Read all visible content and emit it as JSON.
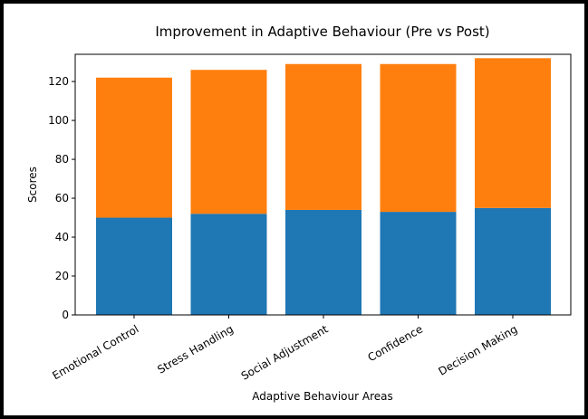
{
  "chart_data": {
    "type": "bar",
    "stacked": true,
    "title": "Improvement in Adaptive Behaviour (Pre vs Post)",
    "xlabel": "Adaptive Behaviour Areas",
    "ylabel": "Scores",
    "ylim": [
      0,
      134
    ],
    "yticks": [
      "0",
      "20",
      "40",
      "60",
      "80",
      "100",
      "120"
    ],
    "categories": [
      "Emotional Control",
      "Stress Handling",
      "Social Adjustment",
      "Confidence",
      "Decision Making"
    ],
    "series": [
      {
        "values": [
          50,
          52,
          54,
          53,
          55
        ],
        "color": "#1f77b4"
      },
      {
        "values": [
          72,
          74,
          75,
          76,
          77
        ],
        "color": "#ff7f0e"
      }
    ],
    "grid": false,
    "legend": "none"
  }
}
